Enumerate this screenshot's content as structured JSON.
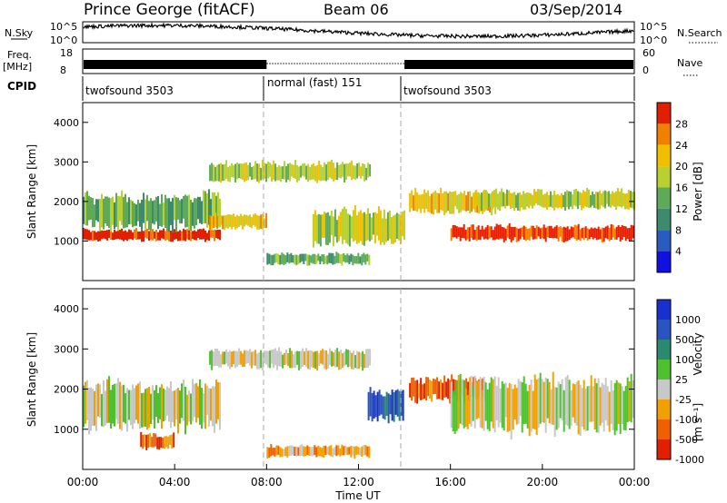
{
  "header": {
    "station": "Prince George (fitACF)",
    "beam": "Beam 06",
    "date": "03/Sep/2014"
  },
  "left_labels": {
    "nsky": "N.Sky",
    "freq": "Freq.",
    "freq_unit": "[MHz]",
    "cpid": "CPID"
  },
  "right_labels": {
    "nsearch": "N.Search",
    "nave": "Nave"
  },
  "cpid_segments": [
    {
      "label": "twofsound 3503",
      "start_h": 0,
      "end_h": 8
    },
    {
      "label": "normal (fast) 151",
      "start_h": 8,
      "end_h": 14
    },
    {
      "label": "twofsound 3503",
      "start_h": 14,
      "end_h": 24
    }
  ],
  "noise_panel": {
    "left_ticks": [
      "10^5",
      "10^0"
    ],
    "right_ticks": [
      "10^5",
      "10^0"
    ]
  },
  "freq_panel": {
    "left_ticks": [
      "18",
      "8"
    ],
    "right_ticks": [
      "60",
      "0"
    ]
  },
  "x_axis": {
    "label": "Time UT",
    "ticks": [
      "00:00",
      "04:00",
      "08:00",
      "12:00",
      "16:00",
      "20:00",
      "00:00"
    ]
  },
  "power_panel": {
    "ylabel": "Slant Range [km]",
    "yticks": [
      "1000",
      "2000",
      "3000",
      "4000"
    ],
    "colorbar_label": "Power [dB]",
    "colorbar_ticks": [
      "4",
      "8",
      "12",
      "16",
      "20",
      "24",
      "28"
    ],
    "colors": [
      "#1010e0",
      "#2a5cc0",
      "#3e8a70",
      "#5faa5a",
      "#b8d030",
      "#f0c000",
      "#f08000",
      "#e02000"
    ]
  },
  "velocity_panel": {
    "ylabel": "Slant Range [km]",
    "yticks": [
      "1000",
      "2000",
      "3000",
      "4000"
    ],
    "colorbar_label": "Velocity",
    "colorbar_unit": "[m s⁻¹]",
    "colorbar_ticks": [
      "1000",
      "500",
      "100",
      "25",
      "-25",
      "-100",
      "-500",
      "-1000"
    ],
    "colors": [
      "#1a2fd0",
      "#2a55c0",
      "#2a8a70",
      "#4fc030",
      "#c8c8c8",
      "#f0a000",
      "#f06000",
      "#e02000"
    ]
  },
  "chart_data": {
    "type": "heatmap",
    "title": "Prince George (fitACF)",
    "x_range_hours": [
      0,
      24
    ],
    "y_range_km": [
      0,
      4500
    ],
    "power_bands": [
      {
        "t0": 0,
        "t1": 6,
        "r0": 1000,
        "r1": 1300,
        "level": 7
      },
      {
        "t0": 0,
        "t1": 6,
        "r0": 1300,
        "r1": 2200,
        "level": 3
      },
      {
        "t0": 5.5,
        "t1": 8,
        "r0": 1300,
        "r1": 1700,
        "level": 5
      },
      {
        "t0": 5.5,
        "t1": 12.5,
        "r0": 2500,
        "r1": 3000,
        "level": 4
      },
      {
        "t0": 8,
        "t1": 12.5,
        "r0": 400,
        "r1": 700,
        "level": 3
      },
      {
        "t0": 10,
        "t1": 14,
        "r0": 900,
        "r1": 1800,
        "level": 4
      },
      {
        "t0": 14.2,
        "t1": 18,
        "r0": 1700,
        "r1": 2300,
        "level": 5
      },
      {
        "t0": 16,
        "t1": 24,
        "r0": 1000,
        "r1": 1400,
        "level": 7
      },
      {
        "t0": 17,
        "t1": 24,
        "r0": 1800,
        "r1": 2300,
        "level": 4
      }
    ],
    "velocity_bands": [
      {
        "t0": 0,
        "t1": 6,
        "r0": 1000,
        "r1": 2200,
        "level": 4
      },
      {
        "t0": 2.5,
        "t1": 4,
        "r0": 500,
        "r1": 900,
        "level": 6
      },
      {
        "t0": 5.5,
        "t1": 12.5,
        "r0": 2500,
        "r1": 3000,
        "level": 4
      },
      {
        "t0": 8,
        "t1": 12.5,
        "r0": 300,
        "r1": 600,
        "level": 5
      },
      {
        "t0": 12.4,
        "t1": 14,
        "r0": 1200,
        "r1": 2000,
        "level": 1
      },
      {
        "t0": 14.2,
        "t1": 17.5,
        "r0": 1700,
        "r1": 2300,
        "level": 6
      },
      {
        "t0": 16,
        "t1": 24,
        "r0": 900,
        "r1": 2300,
        "level": 4
      }
    ]
  }
}
